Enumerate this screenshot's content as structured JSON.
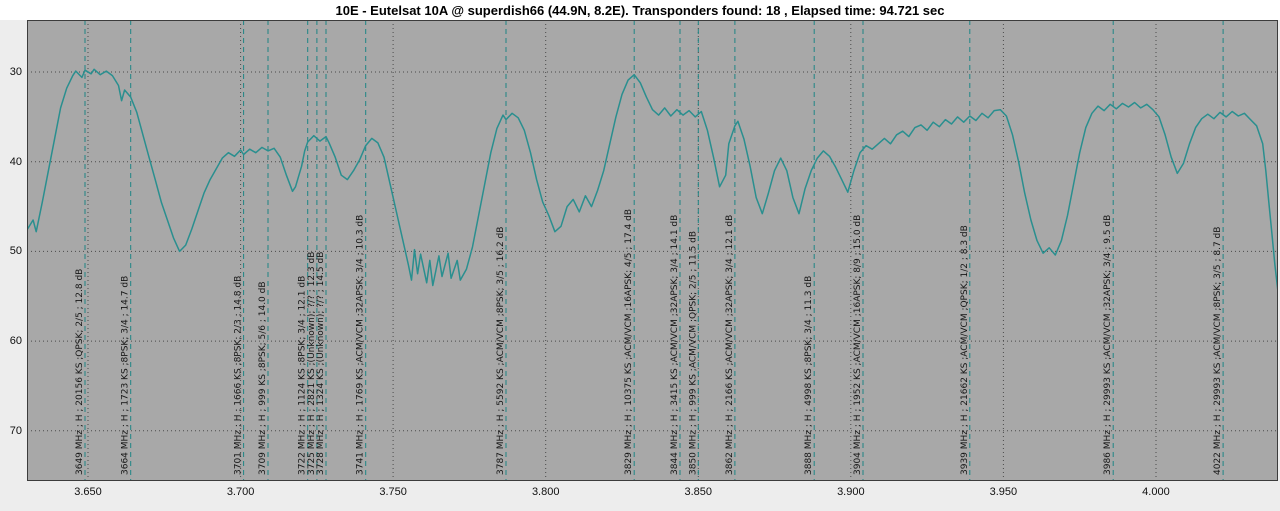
{
  "window": {
    "title": "10E - Eutelsat 10A @ superdish66 (44.9N, 8.2E). Transponders found: 18 , Elapsed time: 94.721 sec"
  },
  "colors": {
    "title_bg": "#ffffff",
    "plot_bg": "#a8a8a8",
    "axis_bg": "#ededed",
    "trace": "#2a8f8f",
    "transponder_line": "#1e8585",
    "grid": "#4a4a4a",
    "frame": "#3c3c3c",
    "label_text": "#161616",
    "tick_text": "#101010"
  },
  "chart_data": {
    "type": "line",
    "title": "10E - Eutelsat 10A @ superdish66 (44.9N, 8.2E). Transponders found: 18 , Elapsed time: 94.721 sec",
    "xlabel": "",
    "ylabel": "",
    "grid": true,
    "y_axis_inverted": true,
    "x_ticks": [
      "3.650",
      "3.700",
      "3.750",
      "3.800",
      "3.850",
      "3.900",
      "3.950",
      "4.000"
    ],
    "y_ticks": [
      30,
      40,
      50,
      60,
      70
    ],
    "x_range_mhz": [
      3630,
      4040
    ],
    "y_range_db": [
      24.2,
      75.6
    ],
    "transponders": [
      {
        "freq_mhz": 3649,
        "label": "3649 MHz ; H ; 20156 KS ;QPSK; 2/5 ; 12.8 dB"
      },
      {
        "freq_mhz": 3664,
        "label": "3664 MHz ; H ; 1723 KS ;8PSK; 3/4 ; 14.7 dB"
      },
      {
        "freq_mhz": 3701,
        "label": "3701 MHz ; H ; 1666 KS ;8PSK; 2/3 ; 14.8 dB"
      },
      {
        "freq_mhz": 3709,
        "label": "3709 MHz ; H ; 999 KS ;8PSK; 5/6 ; 14.0 dB"
      },
      {
        "freq_mhz": 3722,
        "label": "3722 MHz ; H ; 1124 KS ;8PSK; 3/4 ; 12.1 dB"
      },
      {
        "freq_mhz": 3725,
        "label": "3725 MHz ; H ; 2821 KS ;(Unknown); ?/? ; 12.3 dB"
      },
      {
        "freq_mhz": 3728,
        "label": "3728 MHz ; H ; 1324 KS ;(Unknown); ?/? ; 14.5 dB"
      },
      {
        "freq_mhz": 3741,
        "label": "3741 MHz ; H ; 1769 KS ;ACM/VCM ;32APSK; 3/4 ; 10.3 dB"
      },
      {
        "freq_mhz": 3787,
        "label": "3787 MHz ; H ; 5592 KS ;ACM/VCM ;8PSK; 3/5 ; 16.2 dB"
      },
      {
        "freq_mhz": 3829,
        "label": "3829 MHz ; H ; 10375 KS ;ACM/VCM ;16APSK; 4/5 ; 17.4 dB"
      },
      {
        "freq_mhz": 3844,
        "label": "3844 MHz ; H ; 3415 KS ;ACM/VCM ;32APSK; 3/4 ; 14.1 dB"
      },
      {
        "freq_mhz": 3850,
        "label": "3850 MHz ; H ; 999 KS ;ACM/VCM ;QPSK; 2/5 ; 11.5 dB"
      },
      {
        "freq_mhz": 3862,
        "label": "3862 MHz ; H ; 2166 KS ;ACM/VCM ;32APSK; 3/4 ; 12.1 dB"
      },
      {
        "freq_mhz": 3888,
        "label": "3888 MHz ; H ; 4998 KS ;8PSK; 3/4 ; 11.3 dB"
      },
      {
        "freq_mhz": 3904,
        "label": "3904 MHz ; H ; 1952 KS ;ACM/VCM ;16APSK; 8/9 ; 15.0 dB"
      },
      {
        "freq_mhz": 3939,
        "label": "3939 MHz ; H ; 21662 KS ;ACM/VCM ;QPSK; 1/2 ; 8.3 dB"
      },
      {
        "freq_mhz": 3986,
        "label": "3986 MHz ; H ; 29993 KS ;ACM/VCM ;32APSK; 3/4 ; 9.5 dB"
      },
      {
        "freq_mhz": 4022,
        "label": "4022 MHz ; H ; 29993 KS ;ACM/VCM ;8PSK; 3/5 ; 8.7 dB"
      }
    ],
    "series": [
      {
        "name": "spectrum",
        "points": [
          [
            3630,
            47.6
          ],
          [
            3632,
            46.5
          ],
          [
            3633,
            47.8
          ],
          [
            3635,
            44.5
          ],
          [
            3637,
            41.0
          ],
          [
            3639,
            37.5
          ],
          [
            3641,
            34.0
          ],
          [
            3643,
            31.8
          ],
          [
            3645,
            30.4
          ],
          [
            3646,
            29.9
          ],
          [
            3648,
            30.6
          ],
          [
            3649,
            29.8
          ],
          [
            3651,
            30.2
          ],
          [
            3652,
            29.7
          ],
          [
            3654,
            30.3
          ],
          [
            3656,
            29.9
          ],
          [
            3658,
            30.4
          ],
          [
            3660,
            31.5
          ],
          [
            3661,
            33.2
          ],
          [
            3662,
            32.0
          ],
          [
            3664,
            32.8
          ],
          [
            3666,
            34.5
          ],
          [
            3668,
            37.0
          ],
          [
            3670,
            39.5
          ],
          [
            3672,
            42.0
          ],
          [
            3674,
            44.5
          ],
          [
            3676,
            46.5
          ],
          [
            3678,
            48.5
          ],
          [
            3680,
            50.0
          ],
          [
            3682,
            49.3
          ],
          [
            3684,
            47.5
          ],
          [
            3686,
            45.5
          ],
          [
            3688,
            43.5
          ],
          [
            3690,
            42.0
          ],
          [
            3692,
            40.8
          ],
          [
            3694,
            39.6
          ],
          [
            3696,
            39.0
          ],
          [
            3698,
            39.4
          ],
          [
            3700,
            38.7
          ],
          [
            3701,
            39.2
          ],
          [
            3703,
            38.6
          ],
          [
            3705,
            39.0
          ],
          [
            3707,
            38.4
          ],
          [
            3709,
            38.8
          ],
          [
            3711,
            38.5
          ],
          [
            3713,
            39.5
          ],
          [
            3715,
            41.5
          ],
          [
            3717,
            43.3
          ],
          [
            3718,
            42.8
          ],
          [
            3720,
            40.5
          ],
          [
            3721,
            38.8
          ],
          [
            3722,
            37.8
          ],
          [
            3724,
            37.1
          ],
          [
            3726,
            37.7
          ],
          [
            3728,
            37.2
          ],
          [
            3729,
            37.9
          ],
          [
            3731,
            39.5
          ],
          [
            3733,
            41.5
          ],
          [
            3735,
            42.0
          ],
          [
            3737,
            41.0
          ],
          [
            3739,
            39.8
          ],
          [
            3741,
            38.2
          ],
          [
            3743,
            37.4
          ],
          [
            3745,
            37.9
          ],
          [
            3747,
            39.5
          ],
          [
            3749,
            42.5
          ],
          [
            3751,
            45.5
          ],
          [
            3753,
            48.5
          ],
          [
            3755,
            51.5
          ],
          [
            3756,
            53.2
          ],
          [
            3757,
            49.8
          ],
          [
            3758,
            52.5
          ],
          [
            3759,
            50.3
          ],
          [
            3761,
            53.5
          ],
          [
            3762,
            51.0
          ],
          [
            3763,
            53.8
          ],
          [
            3765,
            50.5
          ],
          [
            3766,
            52.8
          ],
          [
            3768,
            50.2
          ],
          [
            3769,
            53.0
          ],
          [
            3771,
            51.0
          ],
          [
            3772,
            53.2
          ],
          [
            3774,
            52.0
          ],
          [
            3776,
            49.5
          ],
          [
            3778,
            46.0
          ],
          [
            3780,
            42.5
          ],
          [
            3782,
            39.0
          ],
          [
            3784,
            36.3
          ],
          [
            3786,
            34.8
          ],
          [
            3787,
            35.3
          ],
          [
            3789,
            34.6
          ],
          [
            3791,
            35.1
          ],
          [
            3793,
            36.5
          ],
          [
            3795,
            39.0
          ],
          [
            3797,
            42.0
          ],
          [
            3799,
            44.5
          ],
          [
            3801,
            46.0
          ],
          [
            3803,
            47.8
          ],
          [
            3805,
            47.2
          ],
          [
            3807,
            45.0
          ],
          [
            3809,
            44.2
          ],
          [
            3811,
            45.6
          ],
          [
            3813,
            43.8
          ],
          [
            3815,
            45.0
          ],
          [
            3817,
            43.2
          ],
          [
            3819,
            41.0
          ],
          [
            3821,
            38.0
          ],
          [
            3823,
            35.0
          ],
          [
            3825,
            32.5
          ],
          [
            3827,
            30.9
          ],
          [
            3829,
            30.3
          ],
          [
            3831,
            31.2
          ],
          [
            3833,
            32.8
          ],
          [
            3835,
            34.2
          ],
          [
            3837,
            34.8
          ],
          [
            3839,
            34.0
          ],
          [
            3841,
            34.9
          ],
          [
            3843,
            34.2
          ],
          [
            3845,
            34.8
          ],
          [
            3847,
            34.3
          ],
          [
            3849,
            35.0
          ],
          [
            3851,
            34.4
          ],
          [
            3853,
            36.5
          ],
          [
            3855,
            39.5
          ],
          [
            3857,
            42.8
          ],
          [
            3859,
            41.5
          ],
          [
            3860,
            38.0
          ],
          [
            3862,
            36.0
          ],
          [
            3863,
            35.5
          ],
          [
            3865,
            37.5
          ],
          [
            3867,
            40.5
          ],
          [
            3869,
            44.0
          ],
          [
            3871,
            45.8
          ],
          [
            3873,
            43.5
          ],
          [
            3875,
            41.0
          ],
          [
            3877,
            39.6
          ],
          [
            3879,
            41.0
          ],
          [
            3881,
            44.0
          ],
          [
            3883,
            45.8
          ],
          [
            3885,
            43.0
          ],
          [
            3887,
            41.0
          ],
          [
            3889,
            39.6
          ],
          [
            3891,
            38.8
          ],
          [
            3893,
            39.4
          ],
          [
            3895,
            40.6
          ],
          [
            3897,
            42.0
          ],
          [
            3899,
            43.4
          ],
          [
            3901,
            41.0
          ],
          [
            3903,
            39.0
          ],
          [
            3905,
            38.2
          ],
          [
            3907,
            38.6
          ],
          [
            3909,
            38.0
          ],
          [
            3911,
            37.4
          ],
          [
            3913,
            38.0
          ],
          [
            3915,
            37.0
          ],
          [
            3917,
            36.6
          ],
          [
            3919,
            37.2
          ],
          [
            3921,
            36.2
          ],
          [
            3923,
            35.9
          ],
          [
            3925,
            36.5
          ],
          [
            3927,
            35.6
          ],
          [
            3929,
            36.1
          ],
          [
            3931,
            35.3
          ],
          [
            3933,
            35.8
          ],
          [
            3935,
            35.0
          ],
          [
            3937,
            35.6
          ],
          [
            3939,
            34.9
          ],
          [
            3941,
            35.4
          ],
          [
            3943,
            34.6
          ],
          [
            3945,
            35.1
          ],
          [
            3947,
            34.3
          ],
          [
            3949,
            34.2
          ],
          [
            3951,
            34.9
          ],
          [
            3953,
            37.0
          ],
          [
            3955,
            40.0
          ],
          [
            3957,
            43.5
          ],
          [
            3959,
            46.5
          ],
          [
            3961,
            48.8
          ],
          [
            3963,
            50.2
          ],
          [
            3965,
            49.6
          ],
          [
            3967,
            50.4
          ],
          [
            3969,
            48.8
          ],
          [
            3971,
            46.0
          ],
          [
            3973,
            42.5
          ],
          [
            3975,
            39.0
          ],
          [
            3977,
            36.2
          ],
          [
            3979,
            34.6
          ],
          [
            3981,
            33.8
          ],
          [
            3983,
            34.3
          ],
          [
            3985,
            33.6
          ],
          [
            3987,
            34.1
          ],
          [
            3989,
            33.5
          ],
          [
            3991,
            33.9
          ],
          [
            3993,
            33.4
          ],
          [
            3995,
            34.0
          ],
          [
            3997,
            33.6
          ],
          [
            3999,
            34.2
          ],
          [
            4001,
            35.0
          ],
          [
            4003,
            37.0
          ],
          [
            4005,
            39.5
          ],
          [
            4007,
            41.3
          ],
          [
            4009,
            40.2
          ],
          [
            4011,
            38.0
          ],
          [
            4013,
            36.2
          ],
          [
            4015,
            35.2
          ],
          [
            4017,
            34.7
          ],
          [
            4019,
            35.2
          ],
          [
            4021,
            34.5
          ],
          [
            4023,
            35.0
          ],
          [
            4025,
            34.4
          ],
          [
            4027,
            34.9
          ],
          [
            4029,
            34.6
          ],
          [
            4031,
            35.3
          ],
          [
            4033,
            36.0
          ],
          [
            4035,
            38.0
          ],
          [
            4036,
            41.0
          ],
          [
            4037,
            44.5
          ],
          [
            4038,
            48.0
          ],
          [
            4039,
            51.5
          ],
          [
            4040,
            54.5
          ]
        ]
      }
    ]
  }
}
